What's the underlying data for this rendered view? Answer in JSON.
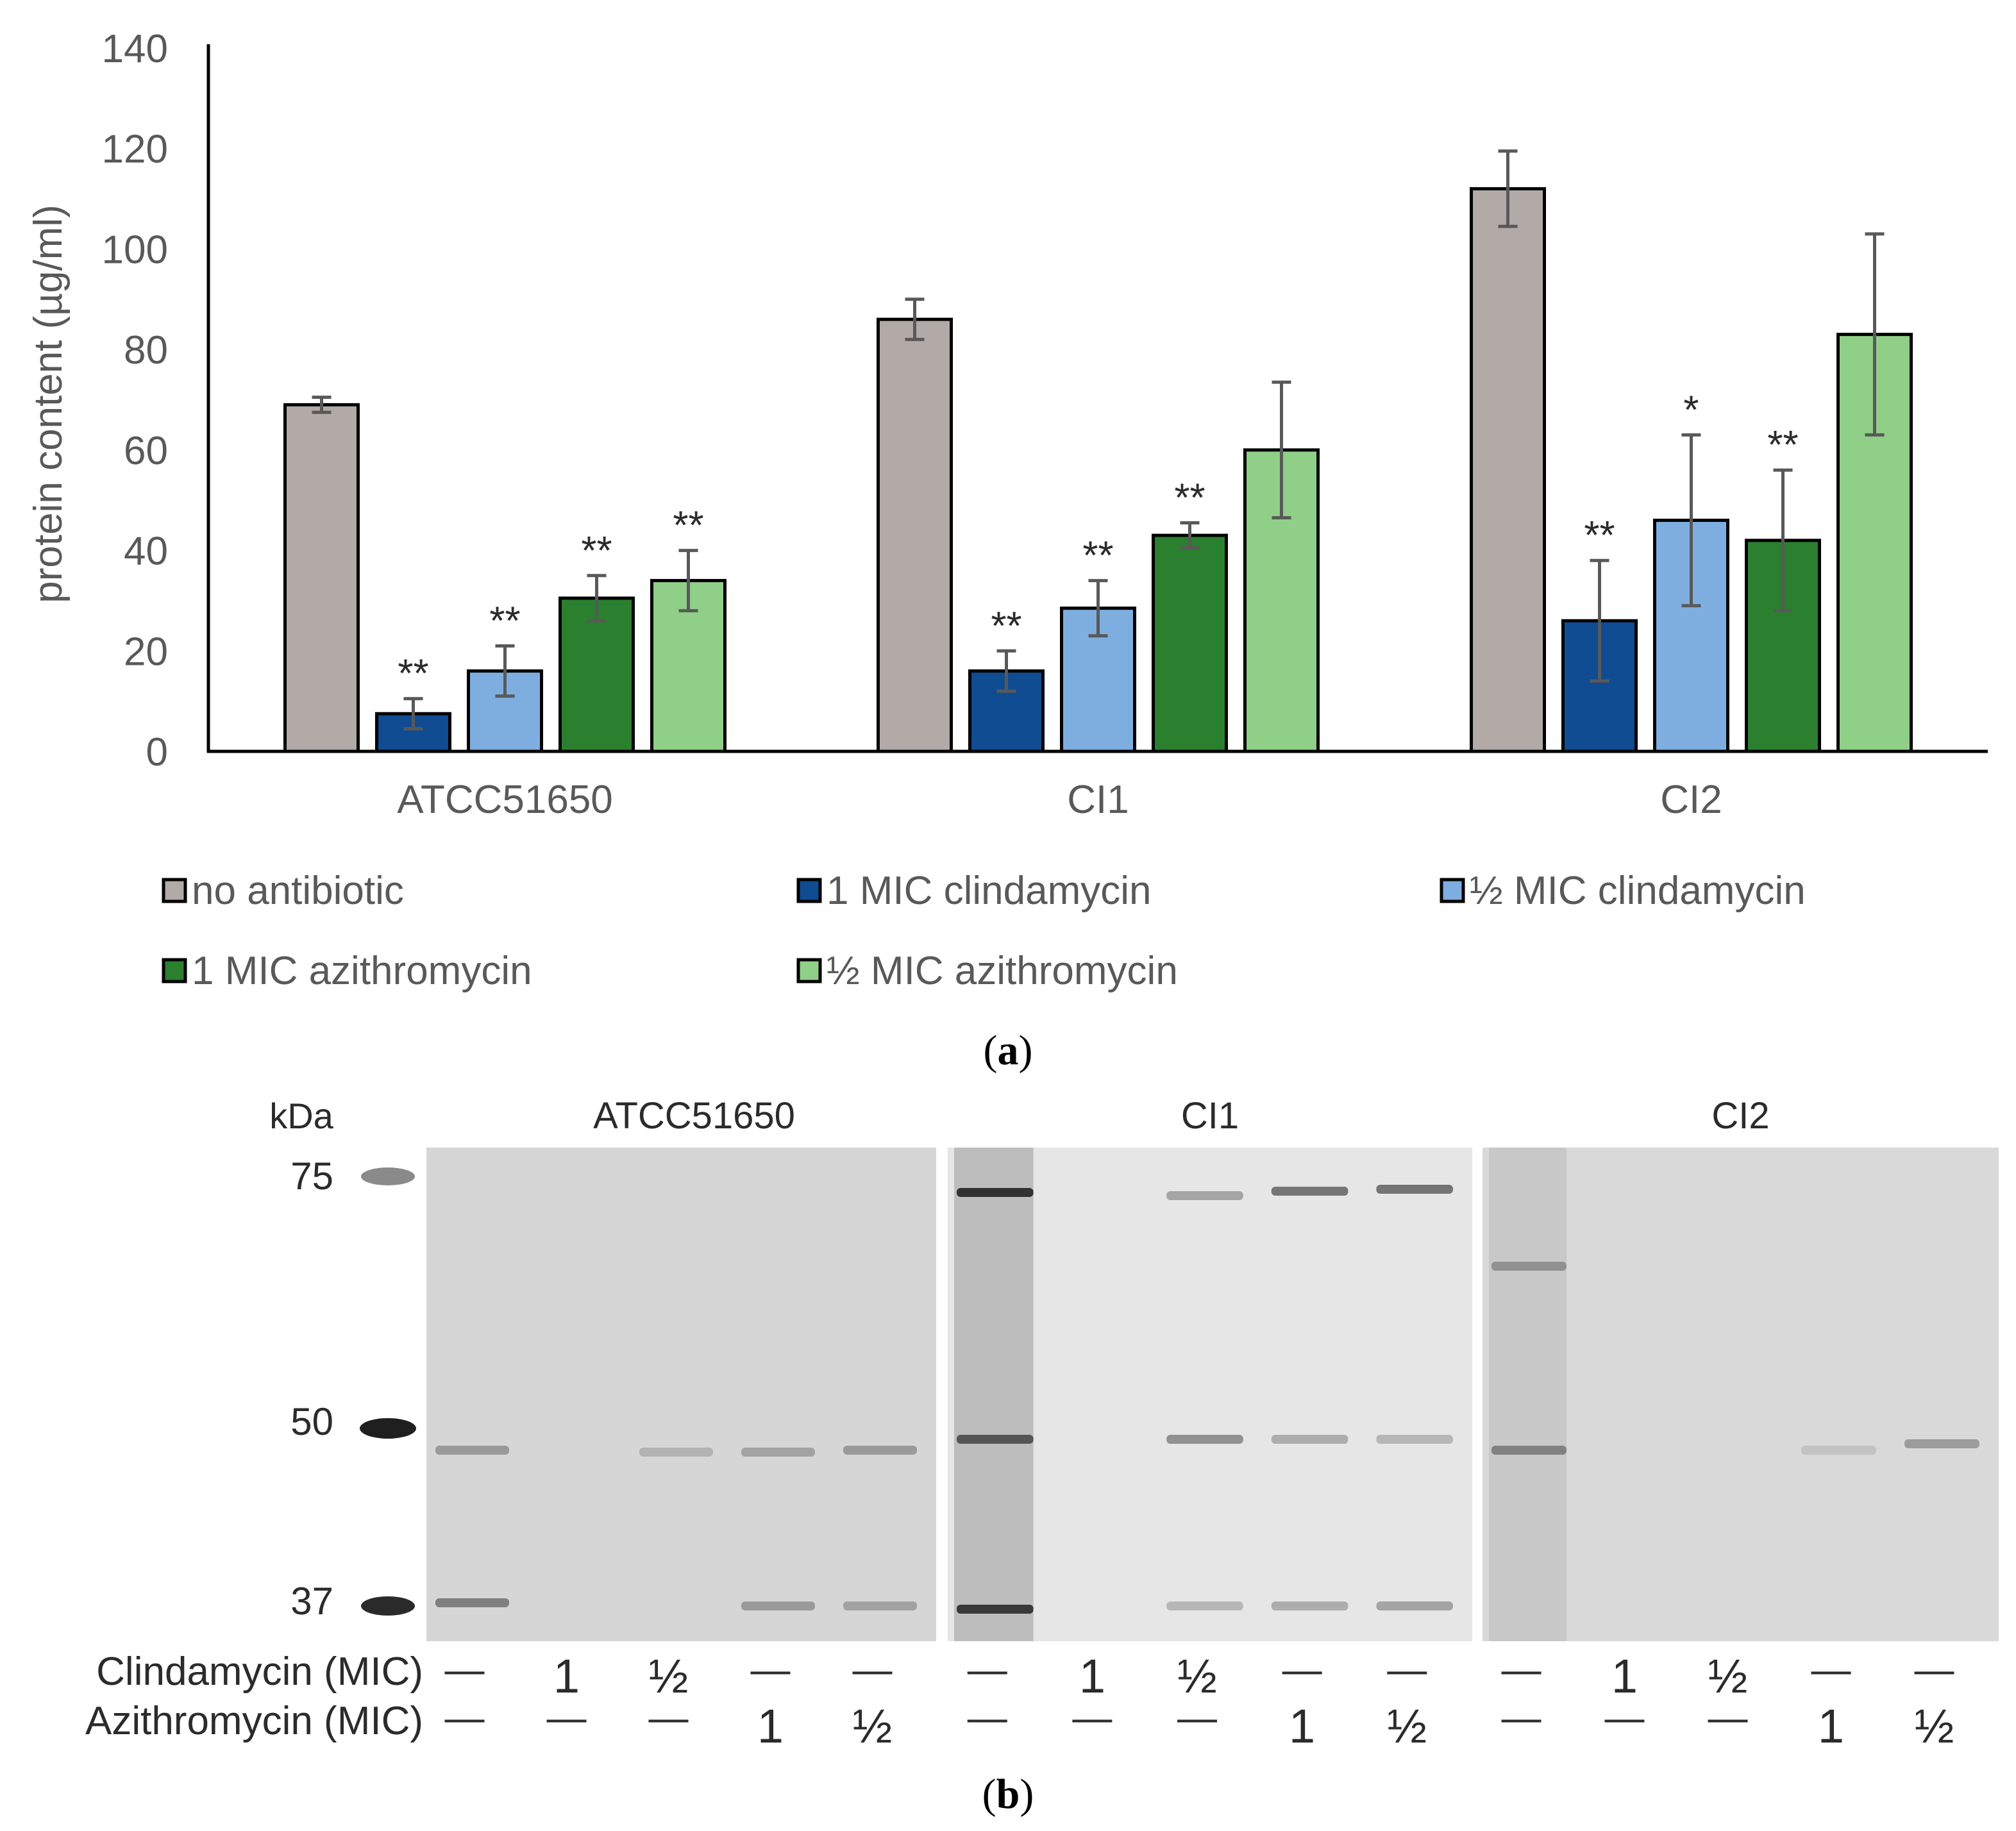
{
  "chart_data": {
    "type": "bar",
    "title": "",
    "ylabel": "protein content (µg/ml)",
    "xlabel": "",
    "ylim": [
      0,
      140
    ],
    "yticks": [
      "0",
      "20",
      "40",
      "60",
      "80",
      "100",
      "120",
      "140"
    ],
    "grid": false,
    "legend_position": "bottom",
    "categories": [
      "ATCC51650",
      "CI1",
      "CI2"
    ],
    "series": [
      {
        "name": "no antibiotic",
        "color": "#b1aaa6",
        "values": [
          69,
          86,
          112
        ],
        "errors": [
          1.5,
          4,
          7.5
        ],
        "annotations": [
          "",
          "",
          ""
        ]
      },
      {
        "name": "1 MIC clindamycin",
        "color": "#0f4c92",
        "values": [
          7.5,
          16,
          26
        ],
        "errors": [
          3,
          4,
          12
        ],
        "annotations": [
          "**",
          "**",
          "**"
        ]
      },
      {
        "name": "½ MIC clindamycin",
        "color": "#7eaee0",
        "values": [
          16,
          28.5,
          46
        ],
        "errors": [
          5,
          5.5,
          17
        ],
        "annotations": [
          "**",
          "**",
          "*"
        ]
      },
      {
        "name": "1 MIC azithromycin",
        "color": "#2a802e",
        "values": [
          30.5,
          43,
          42
        ],
        "errors": [
          4.5,
          2.5,
          14
        ],
        "annotations": [
          "**",
          "**",
          "**"
        ]
      },
      {
        "name": "½ MIC azithromycin",
        "color": "#8fcf87",
        "values": [
          34,
          60,
          83
        ],
        "errors": [
          6,
          13.5,
          20
        ],
        "annotations": [
          "**",
          "",
          ""
        ]
      }
    ]
  },
  "panel_a_label": "a",
  "gel": {
    "unit_label": "kDa",
    "markers": [
      "75",
      "50",
      "37"
    ],
    "groups": [
      {
        "name": "ATCC51650",
        "clindamycin": [
          "—",
          "1",
          "½",
          "—",
          "—"
        ],
        "azithromycin": [
          "—",
          "—",
          "—",
          "1",
          "½"
        ]
      },
      {
        "name": "CI1",
        "clindamycin": [
          "—",
          "1",
          "½",
          "—",
          "—"
        ],
        "azithromycin": [
          "—",
          "—",
          "—",
          "1",
          "½"
        ]
      },
      {
        "name": "CI2",
        "clindamycin": [
          "—",
          "1",
          "½",
          "—",
          "—"
        ],
        "azithromycin": [
          "—",
          "—",
          "—",
          "1",
          "½"
        ]
      }
    ],
    "row_labels": {
      "clindamycin": "Clindamycin (MIC)",
      "azithromycin": "Azithromycin (MIC)"
    }
  },
  "panel_b_label": "b"
}
